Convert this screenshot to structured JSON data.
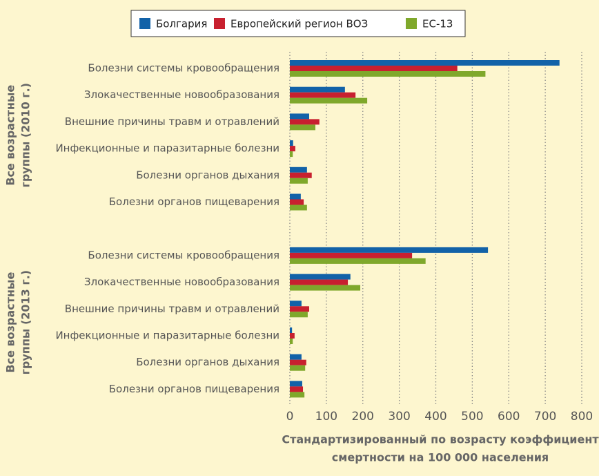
{
  "chart_data": {
    "type": "barh",
    "group_labels": [
      [
        "Все возрастные",
        "группы (2010 г.)"
      ],
      [
        "Все возрастные",
        "группы (2013 г.)"
      ]
    ],
    "categories": [
      "Болезни системы кровообращения",
      "Злокачественные новообразования",
      "Внешние причины травм и отравлений",
      "Инфекционные и паразитарные болезни",
      "Болезни органов дыхания",
      "Болезни органов пищеварения",
      "Болезни системы кровообращения",
      "Злокачественные новообразования",
      "Внешние причины травм и отравлений",
      "Инфекционные и паразитарные болезни",
      "Болезни органов дыхания",
      "Болезни органов пищеварения"
    ],
    "series": [
      {
        "name": "Болгария",
        "color": "#1262a8",
        "values": [
          739,
          151,
          53,
          9,
          47,
          30,
          543,
          166,
          32,
          6,
          32,
          34
        ]
      },
      {
        "name": "Европейский регион ВОЗ",
        "color": "#c8202f",
        "values": [
          459,
          180,
          81,
          15,
          60,
          38,
          335,
          159,
          53,
          13,
          45,
          36
        ]
      },
      {
        "name": "ЕС-13",
        "color": "#7fa82b",
        "values": [
          536,
          212,
          70,
          8,
          49,
          47,
          372,
          193,
          49,
          8,
          42,
          40
        ]
      }
    ],
    "xlabel": [
      "Стандартизированный по возрасту коэффициент",
      "смертности на 100 000 населения"
    ],
    "xlim": [
      0,
      800
    ],
    "xticks": [
      0,
      100,
      200,
      300,
      400,
      500,
      600,
      700,
      800
    ],
    "grid": true,
    "legend": "top"
  }
}
